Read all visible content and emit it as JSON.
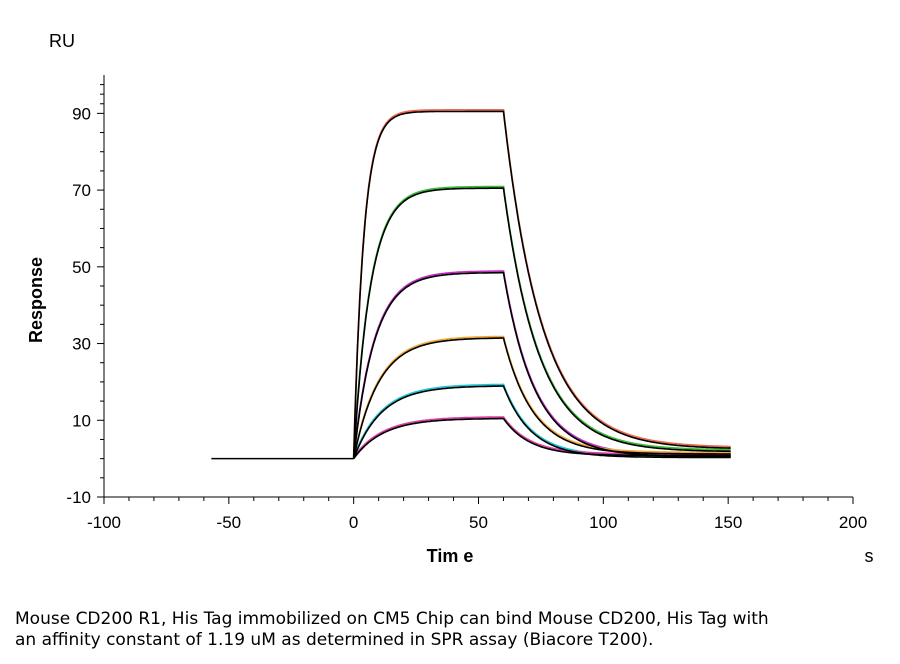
{
  "chart_data": {
    "type": "line",
    "title": "",
    "xlabel": "Tim e",
    "ylabel": "Response",
    "x_unit": "s",
    "y_unit": "RU",
    "xlim": [
      -100,
      200
    ],
    "ylim": [
      -10,
      100
    ],
    "x_ticks": [
      "-100",
      "-50",
      "0",
      "50",
      "100",
      "150",
      "200"
    ],
    "y_ticks": [
      "-10",
      "10",
      "30",
      "50",
      "70",
      "90"
    ],
    "baseline": {
      "x_start": -57,
      "x_end": 0,
      "y": 0
    },
    "injection": {
      "start": 0,
      "end": 60,
      "end_of_dissociation": 151
    },
    "series": [
      {
        "color": "#ee6a4c",
        "plateau": 90.5,
        "end_value": 92,
        "final": 2.5,
        "ka": 0.25,
        "kd": 0.065
      },
      {
        "color": "#3dbb3d",
        "plateau": 70.5,
        "end_value": 70.5,
        "final": 1.8,
        "ka": 0.15,
        "kd": 0.07
      },
      {
        "color": "#c02fc0",
        "plateau": 48.5,
        "end_value": 48.5,
        "final": 0.5,
        "ka": 0.12,
        "kd": 0.08
      },
      {
        "color": "#f2a93b",
        "plateau": 31.5,
        "end_value": 31.5,
        "final": 1.2,
        "ka": 0.1,
        "kd": 0.085
      },
      {
        "color": "#22c4d6",
        "plateau": 19,
        "end_value": 19,
        "final": 0.3,
        "ka": 0.09,
        "kd": 0.09
      },
      {
        "color": "#d93fa4",
        "plateau": 10.5,
        "end_value": 10.5,
        "final": 0.8,
        "ka": 0.085,
        "kd": 0.095
      }
    ],
    "fit_color": "#000000"
  },
  "caption": {
    "line1": "Mouse CD200 R1, His Tag immobilized on CM5 Chip can bind Mouse CD200, His Tag with",
    "line2": "an affinity constant of 1.19 uM as determined in SPR assay (Biacore T200)."
  }
}
